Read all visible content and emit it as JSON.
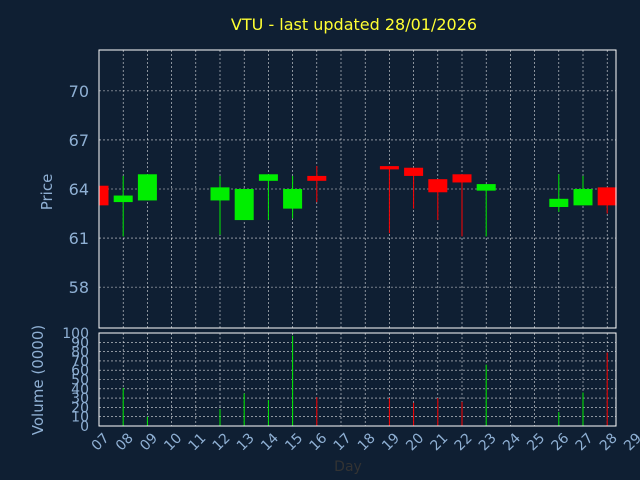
{
  "colors": {
    "background": "#0f1f33",
    "title": "#ffff33",
    "axis_text": "#8fb0d4",
    "up": "#00ee00",
    "down": "#ff0000",
    "frame": "#ffffff"
  },
  "chart_data": {
    "type": "candlestick",
    "title": "VTU - last updated 28/01/2026",
    "xlabel": "Day",
    "price_ylabel": "Price",
    "volume_ylabel": "Volume (0000)",
    "price_ylim": [
      55.5,
      72.5
    ],
    "price_ticks": [
      58,
      61,
      64,
      67,
      70
    ],
    "volume_ylim": [
      0,
      100
    ],
    "volume_ticks": [
      0,
      10,
      20,
      30,
      40,
      50,
      60,
      70,
      80,
      90,
      100
    ],
    "x_ticks": [
      "07",
      "08",
      "09",
      "10",
      "11",
      "12",
      "13",
      "14",
      "15",
      "16",
      "17",
      "18",
      "19",
      "20",
      "21",
      "22",
      "23",
      "24",
      "25",
      "26",
      "27",
      "28",
      "29"
    ],
    "grid": true,
    "candles": [
      {
        "day": "07",
        "open": 64.2,
        "high": 64.2,
        "low": 63.0,
        "close": 63.0,
        "volume": 0
      },
      {
        "day": "08",
        "open": 63.2,
        "high": 64.8,
        "low": 61.1,
        "close": 63.6,
        "volume": 41
      },
      {
        "day": "09",
        "open": 63.3,
        "high": 64.9,
        "low": 63.3,
        "close": 64.9,
        "volume": 10
      },
      {
        "day": "12",
        "open": 63.3,
        "high": 64.8,
        "low": 61.2,
        "close": 64.1,
        "volume": 18
      },
      {
        "day": "13",
        "open": 62.1,
        "high": 64.0,
        "low": 62.1,
        "close": 64.0,
        "volume": 35
      },
      {
        "day": "14",
        "open": 64.5,
        "high": 64.9,
        "low": 62.1,
        "close": 64.9,
        "volume": 28
      },
      {
        "day": "15",
        "open": 62.8,
        "high": 64.8,
        "low": 62.2,
        "close": 64.0,
        "volume": 97
      },
      {
        "day": "16",
        "open": 64.8,
        "high": 65.4,
        "low": 63.2,
        "close": 64.5,
        "volume": 31
      },
      {
        "day": "19",
        "open": 65.4,
        "high": 65.4,
        "low": 61.3,
        "close": 65.2,
        "volume": 30
      },
      {
        "day": "20",
        "open": 65.3,
        "high": 65.3,
        "low": 62.8,
        "close": 64.8,
        "volume": 25
      },
      {
        "day": "21",
        "open": 64.6,
        "high": 64.6,
        "low": 62.1,
        "close": 63.8,
        "volume": 30
      },
      {
        "day": "22",
        "open": 64.9,
        "high": 64.9,
        "low": 61.1,
        "close": 64.4,
        "volume": 26
      },
      {
        "day": "23",
        "open": 63.9,
        "high": 64.3,
        "low": 61.1,
        "close": 64.3,
        "volume": 66
      },
      {
        "day": "26",
        "open": 62.9,
        "high": 64.9,
        "low": 62.6,
        "close": 63.4,
        "volume": 15
      },
      {
        "day": "27",
        "open": 63.0,
        "high": 64.8,
        "low": 63.0,
        "close": 64.0,
        "volume": 36
      },
      {
        "day": "28",
        "open": 64.1,
        "high": 64.1,
        "low": 62.5,
        "close": 63.0,
        "volume": 79
      }
    ]
  }
}
